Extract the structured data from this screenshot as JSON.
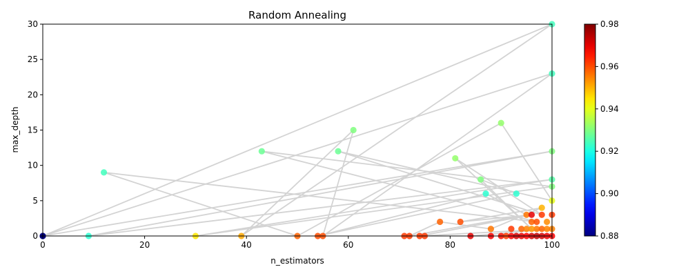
{
  "chart_data": {
    "type": "scatter",
    "title": "Random Annealing",
    "xlabel": "n_estimators",
    "ylabel": "max_depth",
    "xlim": [
      0,
      100
    ],
    "ylim": [
      0,
      30
    ],
    "xticks": [
      0,
      20,
      40,
      60,
      80,
      100
    ],
    "yticks": [
      0,
      5,
      10,
      15,
      20,
      25,
      30
    ],
    "grid": false,
    "line_color": "#d3d3d3",
    "colorbar": {
      "colormap": "jet",
      "range": [
        0.88,
        0.98
      ],
      "ticks": [
        "0.88",
        "0.90",
        "0.92",
        "0.94",
        "0.96",
        "0.98"
      ]
    },
    "path": [
      {
        "x": 0,
        "y": 0,
        "c": 0.88
      },
      {
        "x": 100,
        "y": 30,
        "c": 0.924
      },
      {
        "x": 39,
        "y": 0,
        "c": 0.951
      },
      {
        "x": 61,
        "y": 15,
        "c": 0.93
      },
      {
        "x": 55,
        "y": 0,
        "c": 0.96
      },
      {
        "x": 100,
        "y": 23,
        "c": 0.924
      },
      {
        "x": 0,
        "y": 0,
        "c": 0.88
      },
      {
        "x": 100,
        "y": 12,
        "c": 0.93
      },
      {
        "x": 9,
        "y": 0,
        "c": 0.922
      },
      {
        "x": 100,
        "y": 8,
        "c": 0.926
      },
      {
        "x": 30,
        "y": 0,
        "c": 0.945
      },
      {
        "x": 100,
        "y": 7,
        "c": 0.93
      },
      {
        "x": 43,
        "y": 12,
        "c": 0.928
      },
      {
        "x": 97,
        "y": 2,
        "c": 0.96
      },
      {
        "x": 12,
        "y": 9,
        "c": 0.924
      },
      {
        "x": 50,
        "y": 0,
        "c": 0.958
      },
      {
        "x": 90,
        "y": 16,
        "c": 0.932
      },
      {
        "x": 100,
        "y": 5,
        "c": 0.94
      },
      {
        "x": 58,
        "y": 12,
        "c": 0.928
      },
      {
        "x": 98,
        "y": 3,
        "c": 0.962
      },
      {
        "x": 81,
        "y": 11,
        "c": 0.932
      },
      {
        "x": 96,
        "y": 1,
        "c": 0.953
      },
      {
        "x": 86,
        "y": 8,
        "c": 0.93
      },
      {
        "x": 93,
        "y": 6,
        "c": 0.922
      },
      {
        "x": 54,
        "y": 0,
        "c": 0.96
      },
      {
        "x": 87,
        "y": 6,
        "c": 0.922
      },
      {
        "x": 95,
        "y": 3,
        "c": 0.956
      },
      {
        "x": 72,
        "y": 0,
        "c": 0.962
      },
      {
        "x": 78,
        "y": 2,
        "c": 0.958
      },
      {
        "x": 88,
        "y": 1,
        "c": 0.956
      },
      {
        "x": 98,
        "y": 4,
        "c": 0.95
      },
      {
        "x": 82,
        "y": 2,
        "c": 0.96
      },
      {
        "x": 96,
        "y": 3,
        "c": 0.97
      },
      {
        "x": 74,
        "y": 0,
        "c": 0.962
      },
      {
        "x": 100,
        "y": 1,
        "c": 0.955
      },
      {
        "x": 84,
        "y": 0,
        "c": 0.97
      }
    ],
    "cluster": [
      {
        "x": 71,
        "y": 0,
        "c": 0.962
      },
      {
        "x": 75,
        "y": 0,
        "c": 0.962
      },
      {
        "x": 88,
        "y": 0,
        "c": 0.968
      },
      {
        "x": 90,
        "y": 0,
        "c": 0.966
      },
      {
        "x": 91,
        "y": 0,
        "c": 0.962
      },
      {
        "x": 92,
        "y": 0,
        "c": 0.968
      },
      {
        "x": 93,
        "y": 0,
        "c": 0.972
      },
      {
        "x": 94,
        "y": 0,
        "c": 0.97
      },
      {
        "x": 95,
        "y": 0,
        "c": 0.968
      },
      {
        "x": 96,
        "y": 0,
        "c": 0.972
      },
      {
        "x": 97,
        "y": 0,
        "c": 0.974
      },
      {
        "x": 98,
        "y": 0,
        "c": 0.972
      },
      {
        "x": 99,
        "y": 0,
        "c": 0.97
      },
      {
        "x": 100,
        "y": 0,
        "c": 0.968
      },
      {
        "x": 92,
        "y": 1,
        "c": 0.962
      },
      {
        "x": 94,
        "y": 1,
        "c": 0.958
      },
      {
        "x": 95,
        "y": 1,
        "c": 0.955
      },
      {
        "x": 97,
        "y": 1,
        "c": 0.956
      },
      {
        "x": 98,
        "y": 1,
        "c": 0.958
      },
      {
        "x": 99,
        "y": 1,
        "c": 0.955
      },
      {
        "x": 96,
        "y": 2,
        "c": 0.958
      },
      {
        "x": 99,
        "y": 2,
        "c": 0.954
      },
      {
        "x": 100,
        "y": 3,
        "c": 0.962
      }
    ]
  }
}
